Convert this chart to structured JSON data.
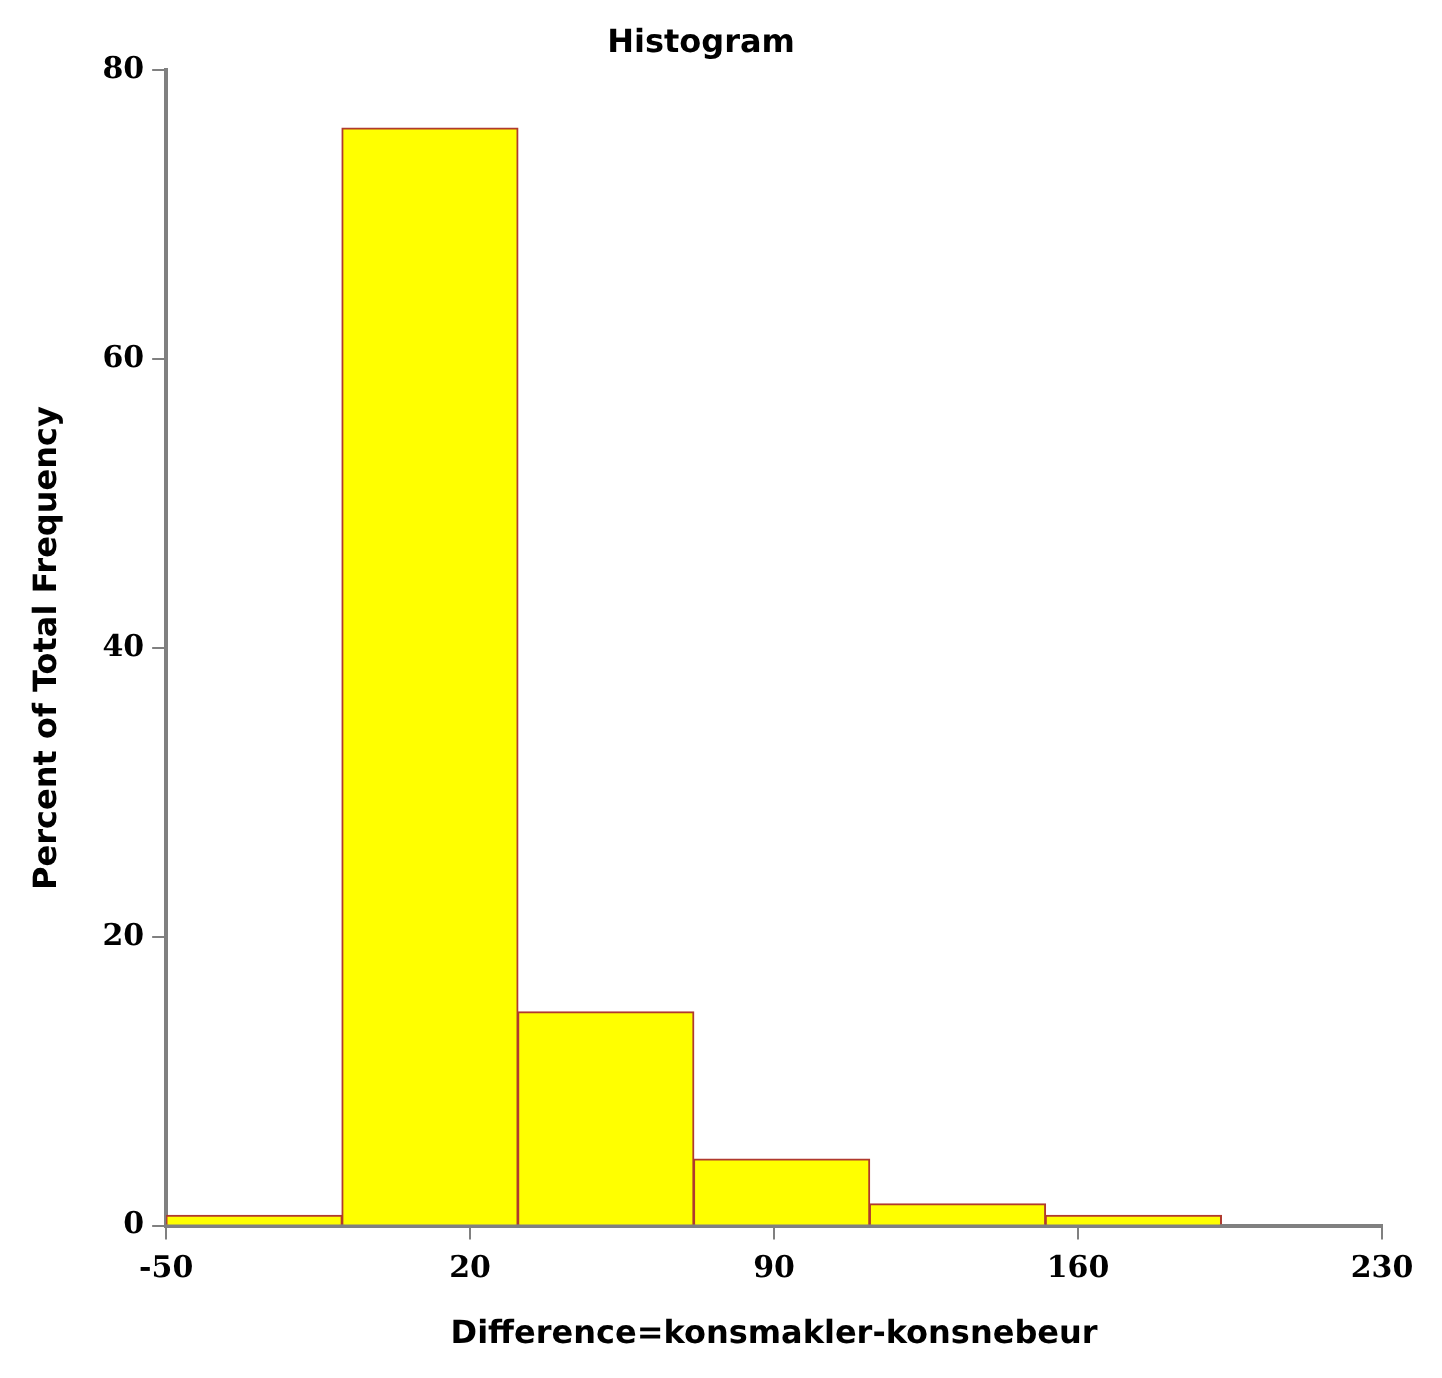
{
  "chart_data": {
    "type": "histogram",
    "title": "Histogram",
    "xlabel": "Difference=konsmakler-konsnebeur",
    "ylabel": "Percent of Total Frequency",
    "bins": [
      -50,
      -9.5,
      31,
      71.5,
      112,
      152.5,
      193
    ],
    "values": [
      0.7,
      76,
      14.8,
      4.6,
      1.5,
      0.7
    ],
    "color": "#ffff00",
    "xlim": [
      -50,
      230
    ],
    "xticks": [
      -50,
      20,
      90,
      160,
      230
    ],
    "ylim": [
      0,
      80
    ],
    "yticks": [
      0,
      20,
      40,
      60,
      80
    ],
    "grid": false,
    "legend": false
  }
}
